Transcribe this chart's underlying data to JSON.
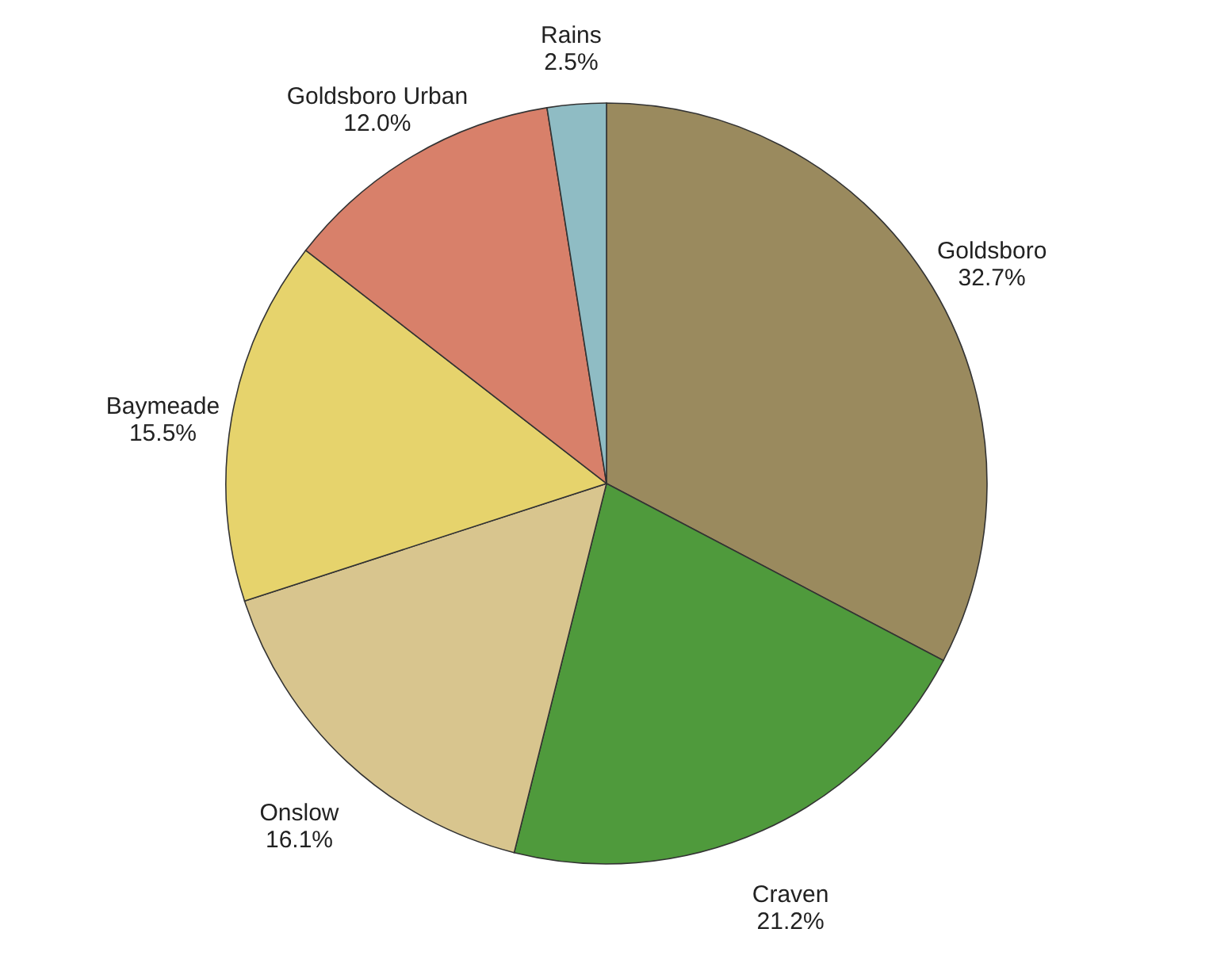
{
  "chart_data": {
    "type": "pie",
    "categories": [
      "Goldsboro",
      "Craven",
      "Onslow",
      "Baymeade",
      "Goldsboro Urban",
      "Rains"
    ],
    "values": [
      32.7,
      21.2,
      16.1,
      15.5,
      12.0,
      2.5
    ],
    "value_labels": [
      "32.7%",
      "21.2%",
      "16.1%",
      "15.5%",
      "12.0%",
      "2.5%"
    ],
    "colors": [
      "#9a8a5e",
      "#4f9a3c",
      "#d8c58e",
      "#e6d36c",
      "#d8806a",
      "#8fbcc4"
    ]
  }
}
